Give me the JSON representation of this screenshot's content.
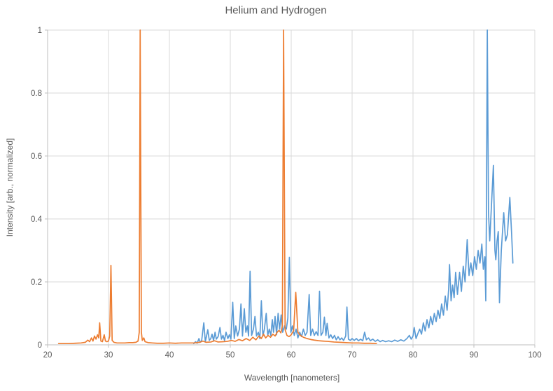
{
  "chart_data": {
    "type": "line",
    "title": "Helium and Hydrogen",
    "xlabel": "Wavelength [nanometers]",
    "ylabel": "Intensity [arb., normalized]",
    "xlim": [
      20,
      100
    ],
    "ylim": [
      0,
      1
    ],
    "xticks": [
      20,
      30,
      40,
      50,
      60,
      70,
      80,
      90,
      100
    ],
    "yticks": [
      0,
      0.2,
      0.4,
      0.6,
      0.8,
      1
    ],
    "grid": true,
    "legend": "none",
    "colors": {
      "gridline": "#D9D9D9",
      "axis_line": "#BFBFBF",
      "text": "#595959",
      "hydrogen": "#5B9BD5",
      "helium": "#ED7D31"
    },
    "series": [
      {
        "name": "Hydrogen",
        "color": "#5B9BD5",
        "points": [
          [
            44.0,
            0.004
          ],
          [
            44.3,
            0.01
          ],
          [
            44.55,
            0.005
          ],
          [
            44.85,
            0.02
          ],
          [
            45.05,
            0.008
          ],
          [
            45.3,
            0.014
          ],
          [
            45.65,
            0.07
          ],
          [
            45.9,
            0.01
          ],
          [
            46.1,
            0.028
          ],
          [
            46.3,
            0.048
          ],
          [
            46.55,
            0.014
          ],
          [
            46.8,
            0.02
          ],
          [
            47.0,
            0.034
          ],
          [
            47.25,
            0.014
          ],
          [
            47.5,
            0.04
          ],
          [
            47.7,
            0.018
          ],
          [
            48.0,
            0.026
          ],
          [
            48.3,
            0.055
          ],
          [
            48.55,
            0.018
          ],
          [
            48.8,
            0.03
          ],
          [
            49.05,
            0.014
          ],
          [
            49.3,
            0.04
          ],
          [
            49.6,
            0.02
          ],
          [
            49.85,
            0.032
          ],
          [
            50.1,
            0.018
          ],
          [
            50.4,
            0.135
          ],
          [
            50.65,
            0.02
          ],
          [
            50.9,
            0.06
          ],
          [
            51.2,
            0.028
          ],
          [
            51.5,
            0.05
          ],
          [
            51.75,
            0.13
          ],
          [
            52.0,
            0.028
          ],
          [
            52.3,
            0.115
          ],
          [
            52.55,
            0.04
          ],
          [
            52.8,
            0.06
          ],
          [
            53.0,
            0.028
          ],
          [
            53.25,
            0.234
          ],
          [
            53.5,
            0.03
          ],
          [
            53.8,
            0.05
          ],
          [
            54.05,
            0.09
          ],
          [
            54.3,
            0.028
          ],
          [
            54.6,
            0.04
          ],
          [
            54.85,
            0.02
          ],
          [
            55.1,
            0.14
          ],
          [
            55.35,
            0.028
          ],
          [
            55.6,
            0.05
          ],
          [
            55.9,
            0.1
          ],
          [
            56.15,
            0.03
          ],
          [
            56.4,
            0.05
          ],
          [
            56.65,
            0.03
          ],
          [
            56.9,
            0.08
          ],
          [
            57.1,
            0.04
          ],
          [
            57.35,
            0.09
          ],
          [
            57.6,
            0.032
          ],
          [
            57.85,
            0.1
          ],
          [
            58.1,
            0.05
          ],
          [
            58.35,
            0.095
          ],
          [
            58.6,
            0.04
          ],
          [
            58.9,
            0.06
          ],
          [
            59.2,
            0.05
          ],
          [
            59.45,
            0.085
          ],
          [
            59.7,
            0.278
          ],
          [
            59.95,
            0.04
          ],
          [
            60.2,
            0.06
          ],
          [
            60.5,
            0.03
          ],
          [
            60.8,
            0.05
          ],
          [
            61.1,
            0.022
          ],
          [
            61.4,
            0.04
          ],
          [
            61.7,
            0.026
          ],
          [
            62.0,
            0.05
          ],
          [
            62.3,
            0.03
          ],
          [
            62.6,
            0.04
          ],
          [
            62.95,
            0.16
          ],
          [
            63.2,
            0.03
          ],
          [
            63.5,
            0.05
          ],
          [
            63.8,
            0.03
          ],
          [
            64.1,
            0.042
          ],
          [
            64.4,
            0.03
          ],
          [
            64.65,
            0.17
          ],
          [
            64.9,
            0.03
          ],
          [
            65.2,
            0.04
          ],
          [
            65.45,
            0.088
          ],
          [
            65.7,
            0.03
          ],
          [
            65.9,
            0.068
          ],
          [
            66.2,
            0.022
          ],
          [
            66.5,
            0.032
          ],
          [
            66.8,
            0.02
          ],
          [
            67.1,
            0.03
          ],
          [
            67.4,
            0.016
          ],
          [
            67.7,
            0.026
          ],
          [
            68.0,
            0.016
          ],
          [
            68.3,
            0.022
          ],
          [
            68.6,
            0.014
          ],
          [
            68.95,
            0.028
          ],
          [
            69.15,
            0.12
          ],
          [
            69.4,
            0.018
          ],
          [
            69.7,
            0.014
          ],
          [
            70.0,
            0.02
          ],
          [
            70.35,
            0.014
          ],
          [
            70.7,
            0.02
          ],
          [
            71.05,
            0.013
          ],
          [
            71.4,
            0.018
          ],
          [
            71.75,
            0.013
          ],
          [
            72.05,
            0.04
          ],
          [
            72.35,
            0.016
          ],
          [
            72.7,
            0.022
          ],
          [
            73.0,
            0.013
          ],
          [
            73.4,
            0.018
          ],
          [
            73.8,
            0.011
          ],
          [
            74.2,
            0.016
          ],
          [
            74.6,
            0.01
          ],
          [
            75.0,
            0.014
          ],
          [
            75.5,
            0.01
          ],
          [
            76.0,
            0.013
          ],
          [
            76.5,
            0.01
          ],
          [
            77.0,
            0.015
          ],
          [
            77.5,
            0.011
          ],
          [
            78.0,
            0.016
          ],
          [
            78.5,
            0.012
          ],
          [
            79.0,
            0.02
          ],
          [
            79.4,
            0.03
          ],
          [
            79.7,
            0.018
          ],
          [
            80.0,
            0.028
          ],
          [
            80.2,
            0.055
          ],
          [
            80.5,
            0.02
          ],
          [
            80.8,
            0.036
          ],
          [
            81.1,
            0.05
          ],
          [
            81.4,
            0.034
          ],
          [
            81.7,
            0.07
          ],
          [
            82.0,
            0.044
          ],
          [
            82.3,
            0.08
          ],
          [
            82.6,
            0.054
          ],
          [
            82.9,
            0.09
          ],
          [
            83.2,
            0.064
          ],
          [
            83.5,
            0.1
          ],
          [
            83.8,
            0.074
          ],
          [
            84.1,
            0.11
          ],
          [
            84.4,
            0.084
          ],
          [
            84.7,
            0.13
          ],
          [
            85.0,
            0.094
          ],
          [
            85.3,
            0.155
          ],
          [
            85.6,
            0.11
          ],
          [
            85.85,
            0.175
          ],
          [
            86.0,
            0.255
          ],
          [
            86.25,
            0.14
          ],
          [
            86.5,
            0.19
          ],
          [
            86.75,
            0.15
          ],
          [
            87.0,
            0.23
          ],
          [
            87.3,
            0.16
          ],
          [
            87.65,
            0.23
          ],
          [
            87.95,
            0.17
          ],
          [
            88.25,
            0.25
          ],
          [
            88.55,
            0.2
          ],
          [
            88.9,
            0.334
          ],
          [
            89.2,
            0.22
          ],
          [
            89.5,
            0.26
          ],
          [
            89.8,
            0.22
          ],
          [
            90.1,
            0.28
          ],
          [
            90.4,
            0.24
          ],
          [
            90.7,
            0.3
          ],
          [
            91.0,
            0.26
          ],
          [
            91.3,
            0.32
          ],
          [
            91.55,
            0.24
          ],
          [
            91.8,
            0.28
          ],
          [
            91.95,
            0.14
          ],
          [
            92.05,
            0.4
          ],
          [
            92.2,
            1.0
          ],
          [
            92.4,
            0.42
          ],
          [
            92.6,
            0.33
          ],
          [
            92.9,
            0.45
          ],
          [
            93.2,
            0.57
          ],
          [
            93.45,
            0.3
          ],
          [
            93.6,
            0.27
          ],
          [
            93.8,
            0.33
          ],
          [
            94.0,
            0.36
          ],
          [
            94.2,
            0.134
          ],
          [
            94.5,
            0.3
          ],
          [
            94.9,
            0.42
          ],
          [
            95.2,
            0.33
          ],
          [
            95.5,
            0.35
          ],
          [
            95.9,
            0.468
          ],
          [
            96.2,
            0.35
          ],
          [
            96.4,
            0.26
          ]
        ]
      },
      {
        "name": "Helium",
        "color": "#ED7D31",
        "points": [
          [
            21.8,
            0.004
          ],
          [
            22.5,
            0.004
          ],
          [
            23.5,
            0.004
          ],
          [
            24.5,
            0.005
          ],
          [
            25.5,
            0.006
          ],
          [
            26.2,
            0.008
          ],
          [
            26.6,
            0.015
          ],
          [
            26.9,
            0.01
          ],
          [
            27.2,
            0.022
          ],
          [
            27.45,
            0.012
          ],
          [
            27.7,
            0.028
          ],
          [
            27.95,
            0.018
          ],
          [
            28.2,
            0.032
          ],
          [
            28.4,
            0.022
          ],
          [
            28.55,
            0.07
          ],
          [
            28.75,
            0.012
          ],
          [
            29.0,
            0.01
          ],
          [
            29.3,
            0.032
          ],
          [
            29.5,
            0.012
          ],
          [
            29.75,
            0.01
          ],
          [
            30.0,
            0.012
          ],
          [
            30.2,
            0.028
          ],
          [
            30.4,
            0.252
          ],
          [
            30.6,
            0.014
          ],
          [
            30.9,
            0.008
          ],
          [
            31.4,
            0.006
          ],
          [
            32.0,
            0.006
          ],
          [
            32.7,
            0.006
          ],
          [
            33.4,
            0.007
          ],
          [
            34.0,
            0.007
          ],
          [
            34.5,
            0.008
          ],
          [
            34.85,
            0.012
          ],
          [
            35.05,
            0.04
          ],
          [
            35.2,
            1.0
          ],
          [
            35.4,
            0.04
          ],
          [
            35.55,
            0.014
          ],
          [
            35.8,
            0.022
          ],
          [
            36.0,
            0.01
          ],
          [
            36.5,
            0.007
          ],
          [
            37.2,
            0.006
          ],
          [
            38.0,
            0.005
          ],
          [
            39.0,
            0.005
          ],
          [
            40.0,
            0.006
          ],
          [
            41.0,
            0.005
          ],
          [
            42.0,
            0.006
          ],
          [
            43.0,
            0.006
          ],
          [
            44.0,
            0.006
          ],
          [
            45.0,
            0.008
          ],
          [
            45.5,
            0.012
          ],
          [
            46.0,
            0.008
          ],
          [
            46.8,
            0.009
          ],
          [
            47.4,
            0.013
          ],
          [
            48.0,
            0.009
          ],
          [
            48.8,
            0.01
          ],
          [
            49.5,
            0.011
          ],
          [
            50.2,
            0.014
          ],
          [
            50.8,
            0.011
          ],
          [
            51.4,
            0.017
          ],
          [
            52.0,
            0.013
          ],
          [
            52.6,
            0.02
          ],
          [
            53.2,
            0.014
          ],
          [
            53.7,
            0.024
          ],
          [
            54.2,
            0.016
          ],
          [
            54.7,
            0.028
          ],
          [
            55.1,
            0.02
          ],
          [
            55.45,
            0.034
          ],
          [
            55.8,
            0.022
          ],
          [
            56.2,
            0.03
          ],
          [
            56.6,
            0.024
          ],
          [
            57.0,
            0.034
          ],
          [
            57.35,
            0.028
          ],
          [
            57.7,
            0.04
          ],
          [
            58.0,
            0.046
          ],
          [
            58.3,
            0.038
          ],
          [
            58.55,
            0.06
          ],
          [
            58.75,
            1.0
          ],
          [
            59.0,
            0.048
          ],
          [
            59.3,
            0.03
          ],
          [
            59.65,
            0.026
          ],
          [
            60.0,
            0.032
          ],
          [
            60.4,
            0.045
          ],
          [
            60.75,
            0.167
          ],
          [
            61.1,
            0.04
          ],
          [
            61.5,
            0.03
          ],
          [
            62.0,
            0.024
          ],
          [
            62.6,
            0.02
          ],
          [
            63.2,
            0.017
          ],
          [
            63.8,
            0.015
          ],
          [
            64.5,
            0.013
          ],
          [
            65.2,
            0.012
          ],
          [
            66.0,
            0.011
          ],
          [
            67.0,
            0.009
          ],
          [
            68.0,
            0.008
          ],
          [
            69.0,
            0.007
          ],
          [
            70.0,
            0.006
          ],
          [
            71.0,
            0.006
          ],
          [
            72.0,
            0.005
          ],
          [
            73.0,
            0.005
          ],
          [
            74.0,
            0.004
          ]
        ]
      }
    ]
  }
}
